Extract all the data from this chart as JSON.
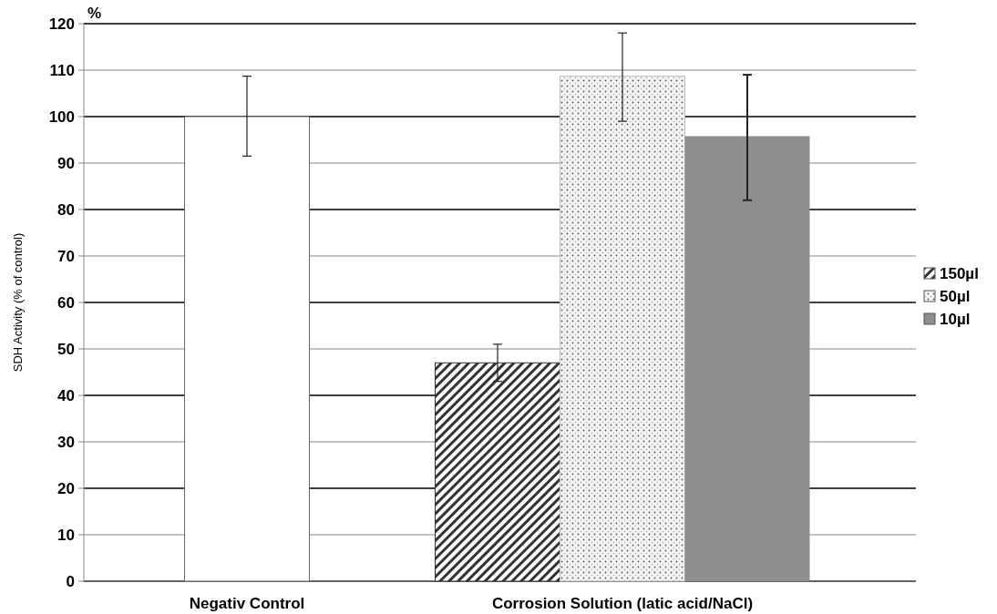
{
  "chart_data": {
    "type": "bar",
    "ylabel": "SDH Activity (% of control)",
    "annotations": [
      "%"
    ],
    "categories": [
      "Negativ Control",
      "Corrosion Solution (latic acid/NaCl)"
    ],
    "series": [
      {
        "color": "#ffffff",
        "values": [
          100,
          null
        ],
        "errors": [
          [
            91.5,
            108.7
          ],
          null
        ]
      },
      {
        "name": "150µl",
        "color": "#333333",
        "values": [
          null,
          47
        ],
        "errors": [
          null,
          [
            43,
            51
          ]
        ]
      },
      {
        "name": "50µl",
        "color": "#bbbbbb",
        "values": [
          null,
          108.7
        ],
        "errors": [
          null,
          [
            99,
            118
          ]
        ]
      },
      {
        "name": "10µl",
        "color": "#8c8f8c",
        "values": [
          null,
          95.8
        ],
        "errors": [
          null,
          [
            82,
            109
          ]
        ]
      }
    ],
    "ylim": [
      0,
      120
    ],
    "yticks": [
      0,
      10,
      20,
      30,
      40,
      50,
      60,
      70,
      80,
      90,
      100,
      110,
      120
    ],
    "grid": "y",
    "legend": "right"
  }
}
